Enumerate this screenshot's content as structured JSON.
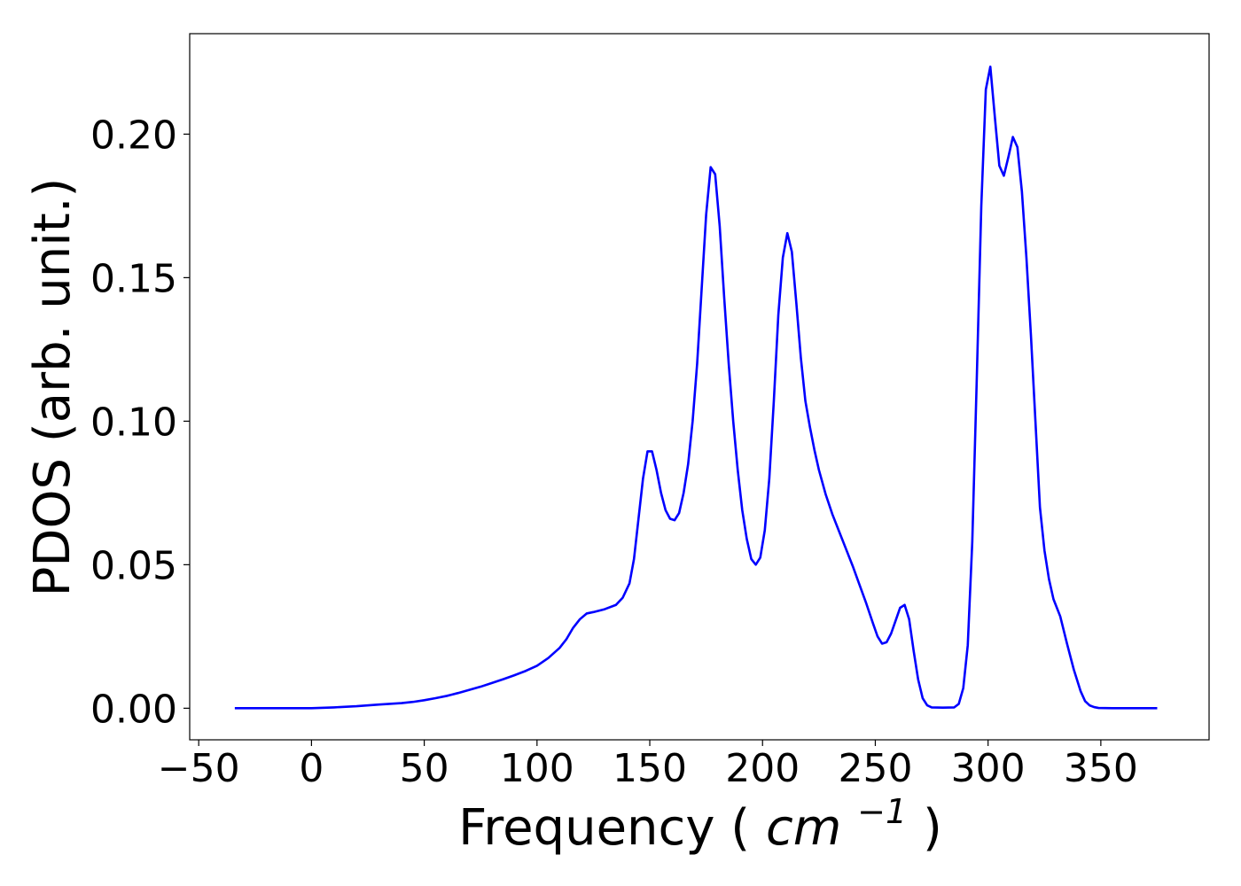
{
  "chart_data": {
    "type": "line",
    "title": "",
    "xlabel": {
      "text": "Frequency",
      "unit_prefix": "(",
      "unit_base": "cm",
      "unit_exp": "−1",
      "unit_suffix": ")"
    },
    "ylabel": "PDOS (arb. unit.)",
    "xlim": [
      -54,
      398
    ],
    "ylim": [
      -0.011,
      0.235
    ],
    "xticks": [
      -50,
      0,
      50,
      100,
      150,
      200,
      250,
      300,
      350
    ],
    "xtick_labels": [
      "−50",
      "0",
      "50",
      "100",
      "150",
      "200",
      "250",
      "300",
      "350"
    ],
    "yticks": [
      0.0,
      0.05,
      0.1,
      0.15,
      0.2
    ],
    "ytick_labels": [
      "0.00",
      "0.05",
      "0.10",
      "0.15",
      "0.20"
    ],
    "grid": false,
    "series": [
      {
        "color": "#0000ff",
        "x": [
          -34,
          0,
          10,
          20,
          30,
          40,
          45,
          50,
          55,
          60,
          65,
          70,
          75,
          80,
          85,
          90,
          95,
          100,
          105,
          110,
          113,
          116,
          119,
          122,
          125,
          130,
          135,
          138,
          141,
          143,
          145,
          147,
          149,
          151,
          153,
          155,
          157,
          159,
          161,
          163,
          165,
          167,
          169,
          171,
          173,
          175,
          177,
          179,
          181,
          183,
          185,
          187,
          189,
          191,
          193,
          195,
          197,
          199,
          201,
          203,
          205,
          207,
          209,
          211,
          213,
          215,
          217,
          219,
          221,
          223,
          225,
          228,
          231,
          234,
          237,
          240,
          243,
          246,
          249,
          251,
          253,
          255,
          257,
          259,
          261,
          263,
          265,
          267,
          269,
          271,
          273,
          275,
          280,
          285,
          287,
          289,
          291,
          293,
          295,
          297,
          299,
          301,
          303,
          305,
          307,
          309,
          311,
          313,
          315,
          317,
          319,
          321,
          323,
          325,
          327,
          329,
          332,
          335,
          338,
          341,
          343,
          345,
          347,
          349,
          355,
          365,
          375
        ],
        "y": [
          0.0,
          0.0,
          0.0003,
          0.0007,
          0.0013,
          0.0018,
          0.0022,
          0.0028,
          0.0035,
          0.0043,
          0.0053,
          0.0064,
          0.0075,
          0.0088,
          0.0101,
          0.0115,
          0.013,
          0.0148,
          0.0175,
          0.021,
          0.024,
          0.028,
          0.031,
          0.033,
          0.0335,
          0.0345,
          0.036,
          0.0385,
          0.0435,
          0.052,
          0.066,
          0.08,
          0.0895,
          0.0895,
          0.083,
          0.075,
          0.069,
          0.066,
          0.0655,
          0.068,
          0.075,
          0.085,
          0.1,
          0.12,
          0.146,
          0.172,
          0.1885,
          0.186,
          0.168,
          0.143,
          0.12,
          0.1,
          0.083,
          0.069,
          0.059,
          0.052,
          0.05,
          0.0525,
          0.062,
          0.08,
          0.107,
          0.137,
          0.157,
          0.1655,
          0.159,
          0.141,
          0.122,
          0.107,
          0.098,
          0.09,
          0.083,
          0.0745,
          0.0675,
          0.0615,
          0.0555,
          0.0495,
          0.043,
          0.0365,
          0.0295,
          0.025,
          0.0225,
          0.023,
          0.026,
          0.0305,
          0.035,
          0.036,
          0.031,
          0.02,
          0.01,
          0.0035,
          0.001,
          0.0003,
          0.0002,
          0.0003,
          0.0015,
          0.007,
          0.022,
          0.058,
          0.115,
          0.175,
          0.2155,
          0.2235,
          0.206,
          0.189,
          0.1855,
          0.192,
          0.199,
          0.1955,
          0.18,
          0.157,
          0.13,
          0.1,
          0.07,
          0.055,
          0.045,
          0.038,
          0.032,
          0.0225,
          0.0135,
          0.006,
          0.0025,
          0.001,
          0.0004,
          0.0001,
          0.0,
          0.0,
          0.0
        ]
      }
    ]
  }
}
